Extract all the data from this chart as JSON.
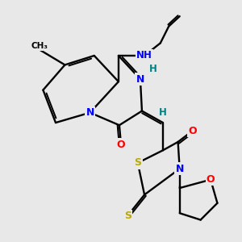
{
  "bg_color": "#e8e8e8",
  "bond_color": "#000000",
  "atom_colors": {
    "N": "#0000ff",
    "O": "#ff0000",
    "S": "#bbaa00",
    "H": "#008080",
    "C": "#000000"
  },
  "figsize": [
    3.0,
    3.0
  ],
  "dpi": 100
}
